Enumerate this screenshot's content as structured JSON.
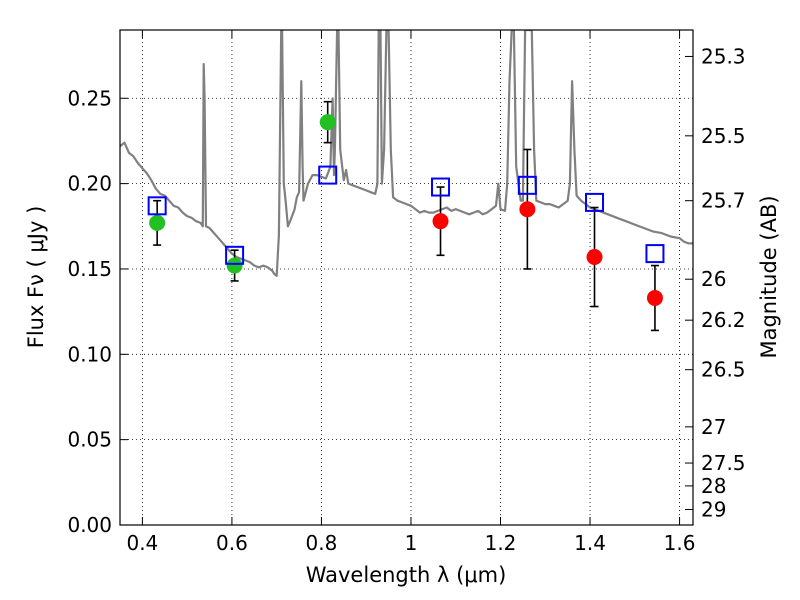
{
  "chart_data": {
    "type": "scatter",
    "xlabel": "Wavelength  λ (μm)",
    "ylabel": "Flux  Fν  ( μJy )",
    "ylabel_right": "Magnitude (AB)",
    "xlim": [
      0.35,
      1.63
    ],
    "ylim": [
      0.0,
      0.29
    ],
    "grid": true,
    "x_ticks": [
      0.4,
      0.6,
      0.8,
      1.0,
      1.2,
      1.4,
      1.6
    ],
    "x_tick_labels": [
      "0.4",
      "0.6",
      "0.8",
      "1",
      "1.2",
      "1.4",
      "1.6"
    ],
    "y_ticks": [
      0.0,
      0.05,
      0.1,
      0.15,
      0.2,
      0.25
    ],
    "y_tick_labels": [
      "0.00",
      "0.05",
      "0.10",
      "0.15",
      "0.20",
      "0.25"
    ],
    "right_ticks": [
      {
        "label": "25.3",
        "flux": 0.2745
      },
      {
        "label": "25.5",
        "flux": 0.228
      },
      {
        "label": "25.7",
        "flux": 0.19
      },
      {
        "label": "26",
        "flux": 0.144
      },
      {
        "label": "26.2",
        "flux": 0.12
      },
      {
        "label": "26.5",
        "flux": 0.091
      },
      {
        "label": "27",
        "flux": 0.0575
      },
      {
        "label": "27.5",
        "flux": 0.0363
      },
      {
        "label": "28",
        "flux": 0.0229
      },
      {
        "label": "29",
        "flux": 0.0091
      }
    ],
    "colors": {
      "spectrum": "#808080",
      "green_points": "#22c022",
      "red_points": "#ff0000",
      "model_squares": "#0000ff",
      "error_bars": "#000000",
      "grid": "#000000"
    },
    "series": [
      {
        "marker": "circle",
        "color": "#22c022",
        "points": [
          {
            "x": 0.433,
            "y": 0.177,
            "err": 0.013
          },
          {
            "x": 0.606,
            "y": 0.152,
            "err": 0.009
          },
          {
            "x": 0.814,
            "y": 0.236,
            "err": 0.012
          }
        ]
      },
      {
        "marker": "circle",
        "color": "#ff0000",
        "points": [
          {
            "x": 1.066,
            "y": 0.178,
            "err": 0.02
          },
          {
            "x": 1.26,
            "y": 0.185,
            "err": 0.035
          },
          {
            "x": 1.41,
            "y": 0.157,
            "err": 0.029
          },
          {
            "x": 1.545,
            "y": 0.133,
            "err": 0.019
          }
        ]
      },
      {
        "marker": "open-square",
        "color": "#0000ff",
        "points": [
          {
            "x": 0.433,
            "y": 0.187
          },
          {
            "x": 0.606,
            "y": 0.158
          },
          {
            "x": 0.814,
            "y": 0.205
          },
          {
            "x": 1.066,
            "y": 0.198
          },
          {
            "x": 1.26,
            "y": 0.199
          },
          {
            "x": 1.41,
            "y": 0.189
          },
          {
            "x": 1.545,
            "y": 0.159
          }
        ]
      }
    ],
    "spectrum": [
      [
        0.35,
        0.222
      ],
      [
        0.36,
        0.224
      ],
      [
        0.37,
        0.218
      ],
      [
        0.38,
        0.216
      ],
      [
        0.39,
        0.212
      ],
      [
        0.4,
        0.209
      ],
      [
        0.41,
        0.206
      ],
      [
        0.42,
        0.202
      ],
      [
        0.43,
        0.197
      ],
      [
        0.44,
        0.194
      ],
      [
        0.45,
        0.193
      ],
      [
        0.46,
        0.19
      ],
      [
        0.47,
        0.187
      ],
      [
        0.48,
        0.186
      ],
      [
        0.49,
        0.183
      ],
      [
        0.5,
        0.181
      ],
      [
        0.51,
        0.18
      ],
      [
        0.52,
        0.178
      ],
      [
        0.53,
        0.177
      ],
      [
        0.535,
        0.175
      ],
      [
        0.537,
        0.27
      ],
      [
        0.539,
        0.25
      ],
      [
        0.542,
        0.175
      ],
      [
        0.55,
        0.174
      ],
      [
        0.56,
        0.171
      ],
      [
        0.57,
        0.168
      ],
      [
        0.58,
        0.165
      ],
      [
        0.59,
        0.162
      ],
      [
        0.6,
        0.159
      ],
      [
        0.61,
        0.157
      ],
      [
        0.62,
        0.156
      ],
      [
        0.63,
        0.155
      ],
      [
        0.64,
        0.154
      ],
      [
        0.65,
        0.152
      ],
      [
        0.66,
        0.151
      ],
      [
        0.67,
        0.152
      ],
      [
        0.68,
        0.151
      ],
      [
        0.69,
        0.149
      ],
      [
        0.695,
        0.147
      ],
      [
        0.7,
        0.146
      ],
      [
        0.705,
        0.17
      ],
      [
        0.71,
        0.29
      ],
      [
        0.712,
        0.29
      ],
      [
        0.716,
        0.2
      ],
      [
        0.72,
        0.19
      ],
      [
        0.725,
        0.175
      ],
      [
        0.73,
        0.178
      ],
      [
        0.74,
        0.185
      ],
      [
        0.745,
        0.192
      ],
      [
        0.75,
        0.195
      ],
      [
        0.755,
        0.26
      ],
      [
        0.758,
        0.21
      ],
      [
        0.76,
        0.19
      ],
      [
        0.77,
        0.2
      ],
      [
        0.78,
        0.205
      ],
      [
        0.79,
        0.205
      ],
      [
        0.8,
        0.204
      ],
      [
        0.81,
        0.203
      ],
      [
        0.82,
        0.21
      ],
      [
        0.825,
        0.25
      ],
      [
        0.828,
        0.205
      ],
      [
        0.83,
        0.22
      ],
      [
        0.835,
        0.29
      ],
      [
        0.838,
        0.29
      ],
      [
        0.842,
        0.22
      ],
      [
        0.85,
        0.202
      ],
      [
        0.855,
        0.208
      ],
      [
        0.86,
        0.2
      ],
      [
        0.87,
        0.199
      ],
      [
        0.88,
        0.198
      ],
      [
        0.89,
        0.197
      ],
      [
        0.9,
        0.196
      ],
      [
        0.91,
        0.195
      ],
      [
        0.92,
        0.194
      ],
      [
        0.925,
        0.2
      ],
      [
        0.928,
        0.29
      ],
      [
        0.932,
        0.29
      ],
      [
        0.935,
        0.2
      ],
      [
        0.94,
        0.22
      ],
      [
        0.945,
        0.29
      ],
      [
        0.95,
        0.29
      ],
      [
        0.955,
        0.22
      ],
      [
        0.96,
        0.192
      ],
      [
        0.97,
        0.19
      ],
      [
        0.98,
        0.189
      ],
      [
        0.99,
        0.188
      ],
      [
        1.0,
        0.187
      ],
      [
        1.01,
        0.185
      ],
      [
        1.02,
        0.183
      ],
      [
        1.03,
        0.184
      ],
      [
        1.04,
        0.183
      ],
      [
        1.05,
        0.183
      ],
      [
        1.06,
        0.184
      ],
      [
        1.08,
        0.186
      ],
      [
        1.09,
        0.184
      ],
      [
        1.1,
        0.185
      ],
      [
        1.11,
        0.184
      ],
      [
        1.12,
        0.183
      ],
      [
        1.13,
        0.182
      ],
      [
        1.14,
        0.183
      ],
      [
        1.15,
        0.184
      ],
      [
        1.16,
        0.182
      ],
      [
        1.17,
        0.183
      ],
      [
        1.18,
        0.185
      ],
      [
        1.19,
        0.187
      ],
      [
        1.195,
        0.2
      ],
      [
        1.2,
        0.185
      ],
      [
        1.21,
        0.184
      ],
      [
        1.215,
        0.2
      ],
      [
        1.22,
        0.26
      ],
      [
        1.225,
        0.29
      ],
      [
        1.23,
        0.29
      ],
      [
        1.235,
        0.21
      ],
      [
        1.24,
        0.2
      ],
      [
        1.245,
        0.19
      ],
      [
        1.25,
        0.19
      ],
      [
        1.255,
        0.29
      ],
      [
        1.26,
        0.29
      ],
      [
        1.265,
        0.29
      ],
      [
        1.27,
        0.29
      ],
      [
        1.275,
        0.22
      ],
      [
        1.28,
        0.19
      ],
      [
        1.29,
        0.189
      ],
      [
        1.3,
        0.188
      ],
      [
        1.31,
        0.188
      ],
      [
        1.32,
        0.187
      ],
      [
        1.33,
        0.186
      ],
      [
        1.34,
        0.188
      ],
      [
        1.35,
        0.19
      ],
      [
        1.355,
        0.2
      ],
      [
        1.36,
        0.26
      ],
      [
        1.365,
        0.22
      ],
      [
        1.37,
        0.193
      ],
      [
        1.38,
        0.19
      ],
      [
        1.39,
        0.188
      ],
      [
        1.4,
        0.186
      ],
      [
        1.42,
        0.184
      ],
      [
        1.44,
        0.182
      ],
      [
        1.46,
        0.18
      ],
      [
        1.48,
        0.178
      ],
      [
        1.5,
        0.176
      ],
      [
        1.52,
        0.174
      ],
      [
        1.54,
        0.172
      ],
      [
        1.56,
        0.171
      ],
      [
        1.58,
        0.169
      ],
      [
        1.6,
        0.168
      ],
      [
        1.61,
        0.166
      ],
      [
        1.62,
        0.165
      ],
      [
        1.63,
        0.165
      ]
    ]
  }
}
